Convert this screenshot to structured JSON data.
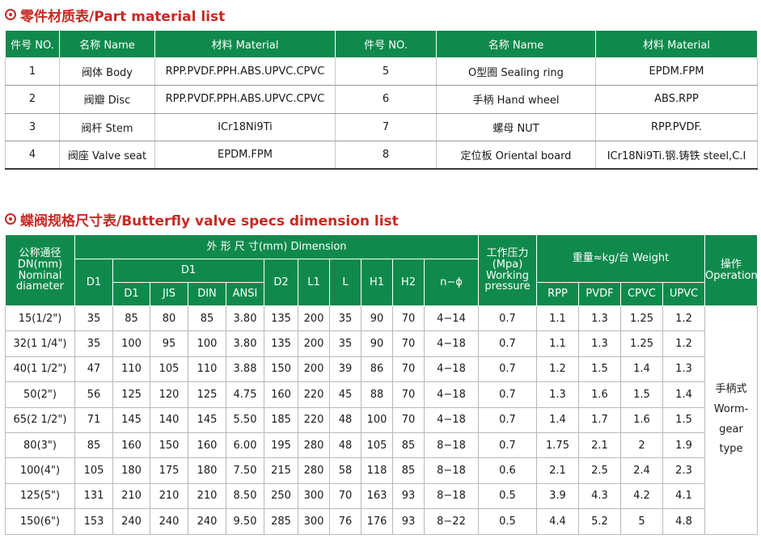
{
  "parts_section": {
    "title": "零件材质表/Part material list",
    "headers": [
      "件号 NO.",
      "名称 Name",
      "材料 Material",
      "件号 NO.",
      "名称 Name",
      "材料 Material"
    ],
    "rows": [
      [
        "1",
        "阀体 Body",
        "RPP.PVDF.PPH.ABS.UPVC.CPVC",
        "5",
        "O型圈 Sealing ring",
        "EPDM.FPM"
      ],
      [
        "2",
        "阀瓣 Disc",
        "RPP.PVDF.PPH.ABS.UPVC.CPVC",
        "6",
        "手柄 Hand wheel",
        "ABS.RPP"
      ],
      [
        "3",
        "阀杆 Stem",
        "ICr18Ni9Ti",
        "7",
        "螺母 NUT",
        "RPP.PVDF."
      ],
      [
        "4",
        "阀座 Valve seat",
        "EPDM.FPM",
        "8",
        "定位板 Oriental board",
        "ICr18Ni9Ti.钢.铸铁 steel,C.I"
      ]
    ]
  },
  "spec_section": {
    "title": "蝶阀规格尺寸表/Butterfly valve specs dimension list",
    "header_dn": [
      "公称通径",
      "DN(mm)",
      "Nominal",
      "diameter"
    ],
    "header_dimension": "外 形 尺 寸(mm) Dimension",
    "header_d1": "D1",
    "header_d1_group": "D1",
    "header_d1_sub": [
      "D1",
      "JIS",
      "DIN",
      "ANSI"
    ],
    "header_d2": "D2",
    "header_l1": "L1",
    "header_l": "L",
    "header_h1": "H1",
    "header_h2": "H2",
    "header_n_phi": "n−ϕ",
    "header_pressure": [
      "工作压力",
      "(Mpa)",
      "Working",
      "pressure"
    ],
    "header_weight": "重量≈kg/台 Weight",
    "header_weight_sub": [
      "RPP",
      "PVDF",
      "CPVC",
      "UPVC"
    ],
    "header_operation": [
      "操作",
      "Operation"
    ],
    "operation_value": [
      "手柄式",
      "Worm-",
      "gear",
      "type"
    ],
    "rows": [
      [
        "15(1/2\")",
        "35",
        "85",
        "80",
        "85",
        "3.80",
        "135",
        "200",
        "35",
        "90",
        "70",
        "4−14",
        "0.7",
        "1.1",
        "1.3",
        "1.25",
        "1.2"
      ],
      [
        "32(1 1/4\")",
        "35",
        "100",
        "95",
        "100",
        "3.80",
        "135",
        "200",
        "35",
        "90",
        "70",
        "4−18",
        "0.7",
        "1.1",
        "1.3",
        "1.25",
        "1.2"
      ],
      [
        "40(1 1/2\")",
        "47",
        "110",
        "105",
        "110",
        "3.88",
        "150",
        "200",
        "39",
        "86",
        "70",
        "4−18",
        "0.7",
        "1.2",
        "1.5",
        "1.4",
        "1.3"
      ],
      [
        "50(2\")",
        "56",
        "125",
        "120",
        "125",
        "4.75",
        "160",
        "220",
        "45",
        "88",
        "70",
        "4−18",
        "0.7",
        "1.3",
        "1.6",
        "1.5",
        "1.4"
      ],
      [
        "65(2 1/2\")",
        "71",
        "145",
        "140",
        "145",
        "5.50",
        "185",
        "220",
        "48",
        "100",
        "70",
        "4−18",
        "0.7",
        "1.4",
        "1.7",
        "1.6",
        "1.5"
      ],
      [
        "80(3\")",
        "85",
        "160",
        "150",
        "160",
        "6.00",
        "195",
        "280",
        "48",
        "105",
        "85",
        "8−18",
        "0.7",
        "1.75",
        "2.1",
        "2",
        "1.9"
      ],
      [
        "100(4\")",
        "105",
        "180",
        "175",
        "180",
        "7.50",
        "215",
        "280",
        "58",
        "118",
        "85",
        "8−18",
        "0.6",
        "2.1",
        "2.5",
        "2.4",
        "2.3"
      ],
      [
        "125(5\")",
        "131",
        "210",
        "210",
        "210",
        "8.50",
        "250",
        "300",
        "70",
        "163",
        "93",
        "8−18",
        "0.5",
        "3.9",
        "4.3",
        "4.2",
        "4.1"
      ],
      [
        "150(6\")",
        "153",
        "240",
        "240",
        "240",
        "9.50",
        "285",
        "300",
        "76",
        "176",
        "93",
        "8−22",
        "0.5",
        "4.4",
        "5.2",
        "5",
        "4.8"
      ]
    ]
  },
  "colors": {
    "header_green": "#0f8a4c",
    "title_red": "#c62a24"
  }
}
